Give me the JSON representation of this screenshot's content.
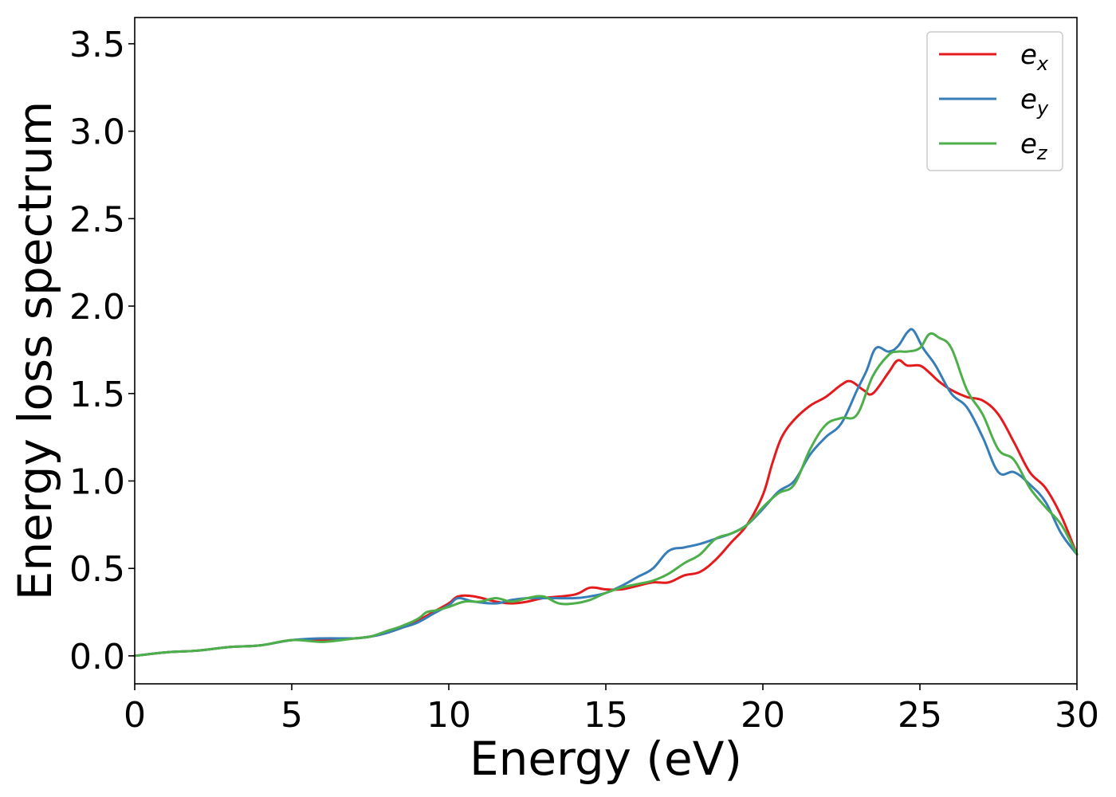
{
  "chart_data": {
    "type": "line",
    "xlabel": "Energy (eV)",
    "ylabel": "Energy loss spectrum",
    "xlim": [
      0,
      30
    ],
    "ylim": [
      -0.16,
      3.65
    ],
    "xticks": [
      0,
      5,
      10,
      15,
      20,
      25,
      30
    ],
    "xtick_labels": [
      "0",
      "5",
      "10",
      "15",
      "20",
      "25",
      "30"
    ],
    "yticks": [
      0.0,
      0.5,
      1.0,
      1.5,
      2.0,
      2.5,
      3.0,
      3.5
    ],
    "ytick_labels": [
      "0.0",
      "0.5",
      "1.0",
      "1.5",
      "2.0",
      "2.5",
      "3.0",
      "3.5"
    ],
    "grid": false,
    "legend_position": "top-right",
    "series": [
      {
        "name": "e",
        "subscript": "x",
        "color": "#e41a1c",
        "x": [
          0,
          1,
          2,
          3,
          4,
          5,
          6,
          7,
          7.5,
          8,
          8.5,
          9,
          9.5,
          10,
          10.3,
          10.8,
          11.5,
          12,
          12.5,
          13,
          14,
          14.5,
          15,
          15.5,
          16,
          16.5,
          17,
          17.5,
          18,
          18.5,
          19,
          19.5,
          20,
          20.3,
          20.6,
          21,
          21.5,
          22,
          22.5,
          22.8,
          23.2,
          23.5,
          24,
          24.3,
          24.6,
          25,
          25.3,
          25.6,
          26,
          26.5,
          27,
          27.5,
          28,
          28.5,
          29,
          29.5,
          30
        ],
        "y": [
          0.0,
          0.02,
          0.03,
          0.05,
          0.06,
          0.09,
          0.09,
          0.1,
          0.11,
          0.13,
          0.16,
          0.2,
          0.25,
          0.3,
          0.34,
          0.34,
          0.31,
          0.3,
          0.31,
          0.33,
          0.35,
          0.39,
          0.38,
          0.38,
          0.4,
          0.42,
          0.42,
          0.46,
          0.48,
          0.55,
          0.65,
          0.75,
          0.92,
          1.1,
          1.25,
          1.35,
          1.43,
          1.48,
          1.55,
          1.57,
          1.52,
          1.5,
          1.62,
          1.69,
          1.66,
          1.66,
          1.62,
          1.57,
          1.52,
          1.48,
          1.46,
          1.38,
          1.22,
          1.05,
          0.96,
          0.8,
          0.58
        ]
      },
      {
        "name": "e",
        "subscript": "y",
        "color": "#377eb8",
        "x": [
          0,
          1,
          2,
          3,
          4,
          5,
          6,
          7,
          7.5,
          8,
          8.5,
          9,
          9.5,
          10,
          10.3,
          10.8,
          11.5,
          12,
          12.5,
          13,
          14,
          14.5,
          15,
          15.5,
          16,
          16.5,
          17,
          17.5,
          18,
          18.5,
          19,
          19.5,
          20,
          20.5,
          21,
          21.5,
          22,
          22.5,
          23,
          23.3,
          23.6,
          24,
          24.3,
          24.6,
          24.8,
          25.1,
          25.5,
          26,
          26.5,
          27,
          27.5,
          28,
          28.5,
          29,
          29.5,
          30
        ],
        "y": [
          0.0,
          0.02,
          0.03,
          0.05,
          0.06,
          0.09,
          0.1,
          0.1,
          0.11,
          0.13,
          0.16,
          0.19,
          0.24,
          0.29,
          0.33,
          0.31,
          0.3,
          0.32,
          0.33,
          0.33,
          0.33,
          0.34,
          0.36,
          0.4,
          0.45,
          0.5,
          0.6,
          0.62,
          0.64,
          0.67,
          0.7,
          0.75,
          0.84,
          0.94,
          1.0,
          1.15,
          1.25,
          1.33,
          1.52,
          1.63,
          1.76,
          1.74,
          1.77,
          1.85,
          1.86,
          1.76,
          1.66,
          1.5,
          1.42,
          1.25,
          1.05,
          1.05,
          0.98,
          0.88,
          0.7,
          0.58
        ]
      },
      {
        "name": "e",
        "subscript": "z",
        "color": "#4daf4a",
        "x": [
          0,
          1,
          2,
          3,
          4,
          5,
          6,
          7,
          7.5,
          8,
          8.5,
          9,
          9.3,
          9.6,
          10,
          10.5,
          11,
          11.5,
          12,
          12.5,
          13,
          13.5,
          14,
          14.5,
          15,
          15.5,
          16,
          16.5,
          17,
          17.5,
          18,
          18.5,
          19,
          19.5,
          20,
          20.5,
          21,
          21.5,
          22,
          22.5,
          23,
          23.5,
          24,
          24.3,
          24.6,
          25,
          25.3,
          25.6,
          26,
          26.5,
          27,
          27.5,
          28,
          28.5,
          29,
          29.5,
          30
        ],
        "y": [
          0.0,
          0.02,
          0.03,
          0.05,
          0.06,
          0.09,
          0.08,
          0.1,
          0.11,
          0.14,
          0.17,
          0.21,
          0.25,
          0.26,
          0.28,
          0.31,
          0.31,
          0.33,
          0.31,
          0.33,
          0.34,
          0.3,
          0.3,
          0.32,
          0.36,
          0.39,
          0.41,
          0.43,
          0.47,
          0.53,
          0.58,
          0.67,
          0.7,
          0.75,
          0.85,
          0.93,
          0.98,
          1.18,
          1.32,
          1.36,
          1.38,
          1.6,
          1.72,
          1.74,
          1.74,
          1.76,
          1.84,
          1.82,
          1.76,
          1.52,
          1.38,
          1.18,
          1.12,
          0.96,
          0.85,
          0.75,
          0.58
        ]
      }
    ]
  }
}
